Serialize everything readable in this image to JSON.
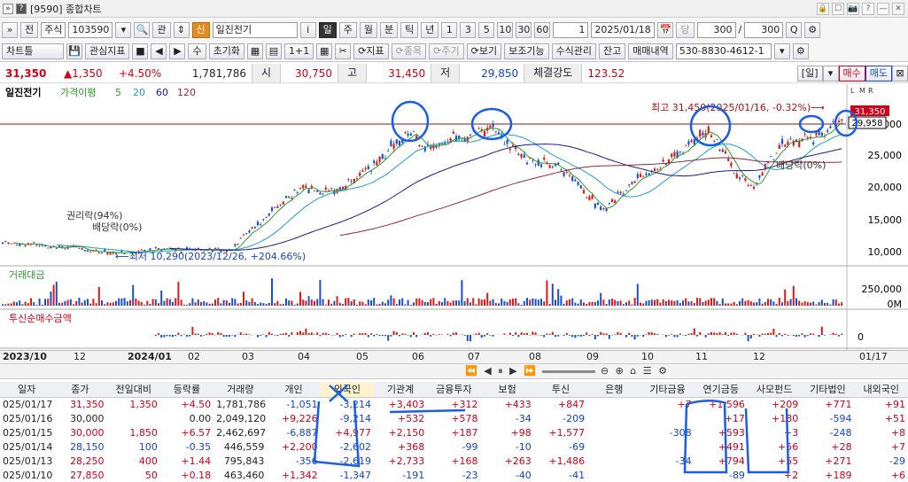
{
  "window": {
    "title": "[9590] 종합차트",
    "icon1": "»",
    "icon2": "?",
    "controls": [
      "🔒",
      "☐",
      "📷",
      "?",
      "—",
      "✕"
    ]
  },
  "toolbar1": {
    "arrow": "»",
    "prev": "전",
    "market": "주식",
    "code": "103590",
    "dropdown": "▾",
    "search": "🔍",
    "interest": "관",
    "updown": "⇕",
    "tag": "신",
    "name": "일진전기",
    "info": "i",
    "periods": [
      "일",
      "주",
      "월",
      "분",
      "틱",
      "년"
    ],
    "nums": [
      "1",
      "3",
      "5",
      "10",
      "30",
      "60"
    ],
    "count": "1",
    "date": "2025/01/18",
    "cal": "📅",
    "dang": "당",
    "n1": "300",
    "slash": "/",
    "n2": "300",
    "q": "Q",
    "gear": "⚙"
  },
  "toolbar2": {
    "chart_type": "차트틀",
    "save": "💾",
    "indicator": "관심지표",
    "nav": [
      "■",
      "◀",
      "▶"
    ],
    "su": "수",
    "reset": "초기화",
    "icons": [
      "▦",
      "▤",
      "1+1",
      "▦"
    ],
    "scissors": "✂",
    "jipyo": "⟳지표",
    "jongmok": "⟳종목",
    "jugi": "⟳주기",
    "bogi": "⟳보기",
    "extra": "보조기능",
    "formula": "수식관리",
    "jango": "잔고",
    "maemae": "매매내역",
    "account": "530-8830-4612-1",
    "acc_dd": "▾",
    "gear": "⚙"
  },
  "info": {
    "price": "31,350",
    "change": "▲1,350",
    "pct": "+4.50%",
    "volume": "1,781,786",
    "open_label": "시",
    "open": "30,750",
    "high_label": "고",
    "high": "31,450",
    "low_label": "저",
    "low": "29,850",
    "strength_label": "체결강도",
    "strength": "123.52",
    "period_btn": "[일]",
    "dd": "▾",
    "buy": "매수",
    "sell": "매도",
    "corner": "⊠"
  },
  "chart": {
    "legend_name": "일진전기",
    "legend_ma": "가격이평",
    "ma": [
      "5",
      "20",
      "60",
      "120"
    ],
    "ma_colors": [
      "#2c9b2c",
      "#1f9fc9",
      "#1a1a8a",
      "#8b2b3b"
    ],
    "y_ticks": [
      "30,000",
      "25,000",
      "20,000",
      "15,000",
      "10,000"
    ],
    "price_tag": "31,350",
    "cross_tag": "29,958",
    "annot_high": "최고 31,450(2025/01/16, -0.32%)⟶",
    "annot_low": "⟵최저 10,290(2023/12/26, +204.66%)",
    "annot_rights": "권리락(94%)",
    "annot_div1": "배당락(0%)",
    "annot_div2": "배당락(0%)",
    "vol_title": "거래대금",
    "vol_ticks": [
      "250,000",
      "0M"
    ],
    "inst_title": "투신순매수금액",
    "inst_ticks": [
      "0"
    ],
    "x_labels": [
      "2023/10",
      "12",
      "2024/01",
      "02",
      "03",
      "04",
      "05",
      "06",
      "07",
      "08",
      "09",
      "10",
      "11",
      "12",
      "01/17"
    ],
    "corner_labels": [
      "L",
      "M",
      "R"
    ]
  },
  "timeline": {
    "icons": [
      "⏪",
      "◀",
      "⏸",
      "▶",
      "⏩",
      "⊖",
      "⊕",
      "⌂",
      "☰",
      "⚙"
    ]
  },
  "table": {
    "headers": [
      "일자",
      "종가",
      "전일대비",
      "등락률",
      "거래량",
      "개인",
      "외국인",
      "기관계",
      "금융투자",
      "보험",
      "투신",
      "은행",
      "기타금융",
      "연기금등",
      "사모펀드",
      "기타법인",
      "내외국인"
    ],
    "rows": [
      [
        "025/01/17",
        "31,350",
        "1,350",
        "+4.50",
        "1,781,786",
        "-1,051",
        "-3,214",
        "+3,403",
        "+312",
        "+433",
        "+847",
        "",
        "+7",
        "+1,596",
        "+209",
        "+771",
        "+91"
      ],
      [
        "025/01/16",
        "30,000",
        "",
        "0.00",
        "2,049,120",
        "+9,226",
        "-9,214",
        "+532",
        "+578",
        "-34",
        "-209",
        "",
        "",
        "+17",
        "+180",
        "-594",
        "+51"
      ],
      [
        "025/01/15",
        "30,000",
        "1,850",
        "+6.57",
        "2,462,697",
        "-6,887",
        "+4,977",
        "+2,150",
        "+187",
        "+98",
        "+1,577",
        "",
        "-308",
        "+593",
        "+3",
        "-248",
        "+8"
      ],
      [
        "025/01/14",
        "28,150",
        "100",
        "-0.35",
        "446,559",
        "+2,200",
        "-2,602",
        "+368",
        "-99",
        "-10",
        "-69",
        "",
        "",
        "+491",
        "+56",
        "+28",
        "+7"
      ],
      [
        "025/01/13",
        "28,250",
        "400",
        "+1.44",
        "795,843",
        "-356",
        "-2,619",
        "+2,733",
        "+168",
        "+263",
        "+1,486",
        "",
        "-34",
        "+794",
        "+55",
        "+271",
        "-29"
      ],
      [
        "025/01/10",
        "27,850",
        "50",
        "+0.18",
        "463,460",
        "+1,342",
        "-1,347",
        "-191",
        "-23",
        "-40",
        "-41",
        "",
        "",
        "-89",
        "+2",
        "+189",
        "+6"
      ]
    ]
  }
}
